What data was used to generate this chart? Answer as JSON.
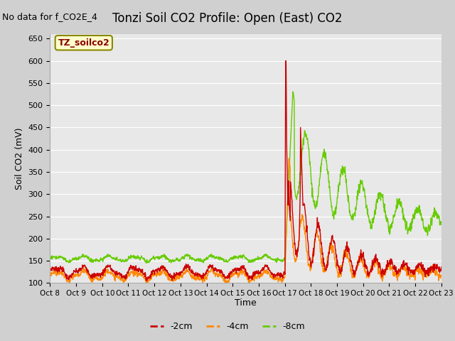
{
  "title": "Tonzi Soil CO2 Profile: Open (East) CO2",
  "top_left_note": "No data for f_CO2E_4",
  "ylabel": "Soil CO2 (mV)",
  "xlabel": "Time",
  "legend_label": "TZ_soilco2",
  "ylim": [
    100,
    660
  ],
  "yticks": [
    100,
    150,
    200,
    250,
    300,
    350,
    400,
    450,
    500,
    550,
    600,
    650
  ],
  "x_tick_labels": [
    "Oct 8",
    "Oct 9",
    "Oct 10",
    "Oct 11",
    "Oct 12",
    "Oct 13",
    "Oct 14",
    "Oct 15",
    "Oct 16",
    "Oct 17",
    "Oct 18",
    "Oct 19",
    "Oct 20",
    "Oct 21",
    "Oct 22",
    "Oct 23"
  ],
  "series_labels": [
    "-2cm",
    "-4cm",
    "-8cm"
  ],
  "series_colors": [
    "#cc0000",
    "#ff8800",
    "#66cc00"
  ],
  "fig_bg_color": "#d0d0d0",
  "plot_bg_color": "#e8e8e8",
  "grid_color": "#ffffff",
  "title_fontsize": 12,
  "note_fontsize": 9,
  "legend_box_color": "#ffffcc",
  "legend_box_edge": "#888800"
}
